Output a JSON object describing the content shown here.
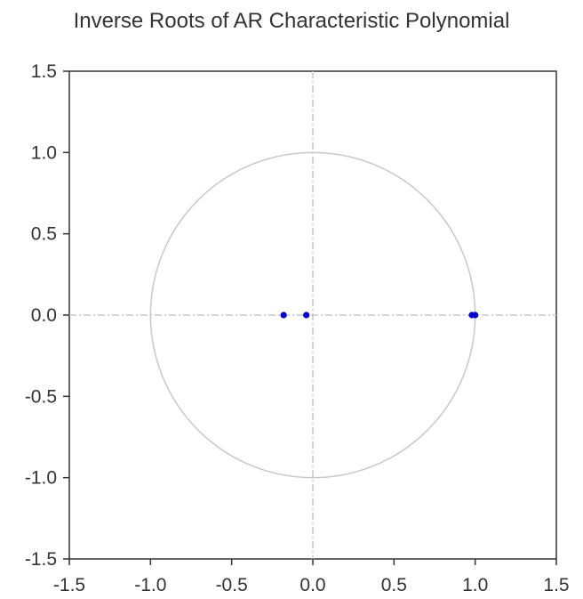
{
  "chart_data": {
    "type": "scatter",
    "title": "Inverse Roots of AR Characteristic Polynomial",
    "xlim": [
      -1.5,
      1.5
    ],
    "ylim": [
      -1.5,
      1.5
    ],
    "x_ticks": [
      "-1.5",
      "-1.0",
      "-0.5",
      "0.0",
      "0.5",
      "1.0",
      "1.5"
    ],
    "y_ticks": [
      "1.5",
      "1.0",
      "0.5",
      "0.0",
      "-0.5",
      "-1.0",
      "-1.5"
    ],
    "x_tick_values": [
      -1.5,
      -1.0,
      -0.5,
      0.0,
      0.5,
      1.0,
      1.5
    ],
    "y_tick_values": [
      1.5,
      1.0,
      0.5,
      0.0,
      -0.5,
      -1.0,
      -1.5
    ],
    "unit_circle": true,
    "zero_reference_lines": true,
    "grid": false,
    "legend": "none",
    "points": [
      {
        "x": -0.18,
        "y": 0.0
      },
      {
        "x": -0.04,
        "y": 0.0
      },
      {
        "x": 0.98,
        "y": 0.0
      },
      {
        "x": 1.0,
        "y": 0.0
      }
    ],
    "colors": {
      "points": "#0000cc",
      "circle": "#c8c8c8",
      "reference": "#c8c8c8",
      "axes": "#333333"
    }
  }
}
